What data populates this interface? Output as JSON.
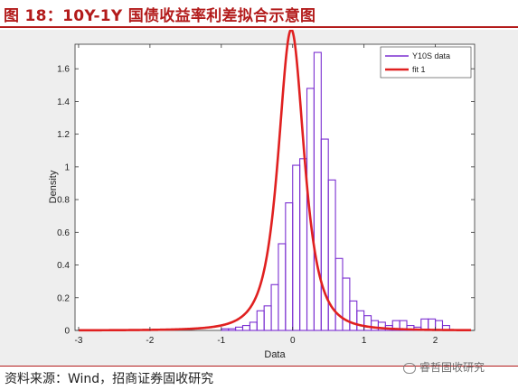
{
  "figure_title": "图 18：10Y-1Y 国债收益率利差拟合示意图",
  "source_text": "资料来源：Wind，招商证券固收研究",
  "watermark_text": "睿哲固收研究",
  "colors": {
    "accent": "#b31b1b",
    "histogram": "#7b2fd1",
    "fit": "#e02020"
  },
  "chart_data": {
    "type": "bar",
    "xlabel": "Data",
    "ylabel": "Density",
    "xlim": [
      -3.05,
      2.55
    ],
    "ylim": [
      0,
      1.75
    ],
    "xticks": [
      -3,
      -2,
      -1,
      0,
      1,
      2
    ],
    "yticks": [
      0,
      0.2,
      0.4,
      0.6,
      0.8,
      1,
      1.2,
      1.4,
      1.6
    ],
    "ytick_labels": [
      "0",
      "0.2",
      "0.4",
      "0.6",
      "0.8",
      "1",
      "1.2",
      "1.4",
      "1.6"
    ],
    "legend_position": "top-right",
    "legend": [
      "Y10S data",
      "fit 1"
    ],
    "bins": {
      "width": 0.1,
      "edges_start": -1.0,
      "values": [
        0.01,
        0.01,
        0.02,
        0.03,
        0.05,
        0.12,
        0.15,
        0.28,
        0.53,
        0.78,
        1.01,
        1.05,
        1.48,
        1.7,
        1.17,
        0.92,
        0.44,
        0.32,
        0.18,
        0.12,
        0.09,
        0.06,
        0.05,
        0.03,
        0.06,
        0.06,
        0.03,
        0.02,
        0.07,
        0.07,
        0.06,
        0.03
      ]
    },
    "fit": {
      "model": "t location-scale",
      "mu": -0.02,
      "sigma": 0.195,
      "nu": 2.3
    }
  }
}
